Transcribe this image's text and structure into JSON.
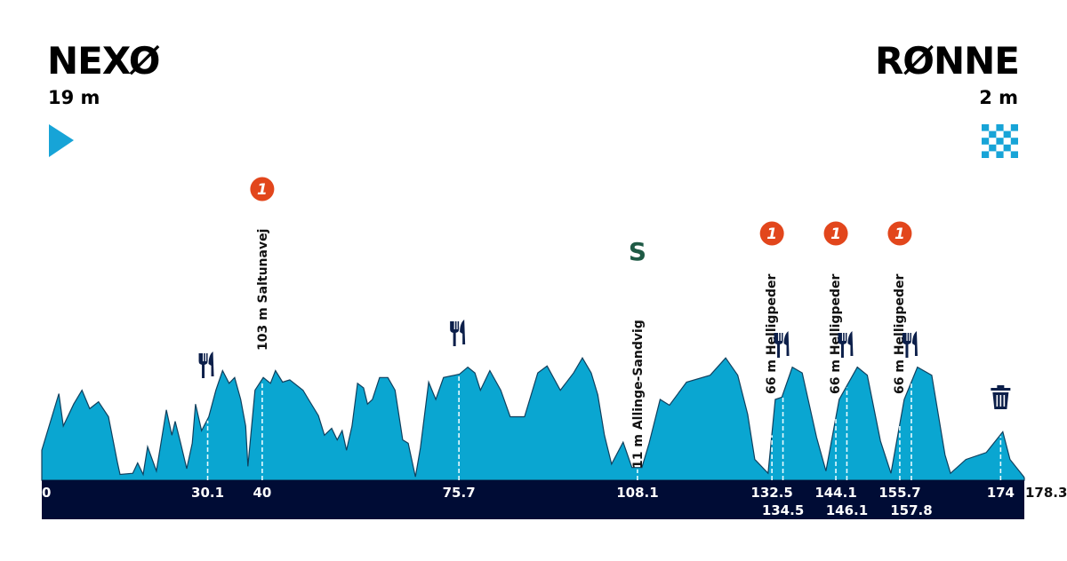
{
  "start": {
    "city": "NEXØ",
    "altitude": "19 m",
    "icon": "play-triangle-icon"
  },
  "finish": {
    "city": "RØNNE",
    "altitude": "2 m",
    "icon": "checkered-flag-icon"
  },
  "colors": {
    "profile_fill": "#0aa6d1",
    "profile_stroke": "#10405e",
    "axis_bar": "#000c35",
    "kom": "#e2461c",
    "sprint": "#1f5a45",
    "icon_dark": "#0c1f4a",
    "start_icon": "#17a4d7"
  },
  "chart_data": {
    "type": "area",
    "xlabel": "",
    "ylabel": "",
    "xlim": [
      0,
      178.3
    ],
    "x_unit": "km",
    "y_unit": "m",
    "profile": [
      [
        0,
        26
      ],
      [
        3.1,
        75
      ],
      [
        3.9,
        47
      ],
      [
        5.8,
        66
      ],
      [
        7.3,
        78
      ],
      [
        8.7,
        62
      ],
      [
        10.3,
        68
      ],
      [
        12.1,
        55
      ],
      [
        13.7,
        16
      ],
      [
        14.2,
        5
      ],
      [
        16.5,
        6
      ],
      [
        17.4,
        15
      ],
      [
        18.4,
        5
      ],
      [
        19.2,
        29
      ],
      [
        20.8,
        8
      ],
      [
        22.6,
        61
      ],
      [
        23.6,
        39
      ],
      [
        24.2,
        51
      ],
      [
        25.2,
        32
      ],
      [
        26.3,
        10
      ],
      [
        27.3,
        32
      ],
      [
        27.9,
        66
      ],
      [
        29.0,
        43
      ],
      [
        30.3,
        55
      ],
      [
        31.6,
        78
      ],
      [
        32.8,
        95
      ],
      [
        34.0,
        84
      ],
      [
        35.0,
        89
      ],
      [
        36.1,
        70
      ],
      [
        37.0,
        47
      ],
      [
        37.4,
        12
      ],
      [
        38.7,
        78
      ],
      [
        40.2,
        89
      ],
      [
        41.5,
        84
      ],
      [
        42.4,
        95
      ],
      [
        43.7,
        85
      ],
      [
        45.0,
        87
      ],
      [
        47.4,
        78
      ],
      [
        48.4,
        70
      ],
      [
        50.2,
        56
      ],
      [
        51.3,
        39
      ],
      [
        52.6,
        45
      ],
      [
        53.6,
        35
      ],
      [
        54.5,
        43
      ],
      [
        55.3,
        26
      ],
      [
        56.3,
        47
      ],
      [
        57.3,
        84
      ],
      [
        58.4,
        80
      ],
      [
        59.1,
        66
      ],
      [
        60.0,
        70
      ],
      [
        61.3,
        89
      ],
      [
        62.8,
        89
      ],
      [
        64.1,
        78
      ],
      [
        65.5,
        35
      ],
      [
        66.5,
        32
      ],
      [
        67.8,
        3
      ],
      [
        68.7,
        28
      ],
      [
        70.2,
        85
      ],
      [
        71.5,
        70
      ],
      [
        72.9,
        89
      ],
      [
        74.9,
        91
      ],
      [
        75.8,
        92
      ],
      [
        77.3,
        98
      ],
      [
        78.6,
        93
      ],
      [
        79.6,
        78
      ],
      [
        81.3,
        95
      ],
      [
        83.3,
        78
      ],
      [
        85.0,
        55
      ],
      [
        87.6,
        55
      ],
      [
        90.0,
        93
      ],
      [
        91.7,
        99
      ],
      [
        94.1,
        78
      ],
      [
        96.5,
        93
      ],
      [
        98.1,
        106
      ],
      [
        99.7,
        93
      ],
      [
        100.9,
        74
      ],
      [
        102.1,
        39
      ],
      [
        103.4,
        14
      ],
      [
        105.5,
        33
      ],
      [
        107.1,
        11
      ],
      [
        108.9,
        11
      ],
      [
        110.2,
        32
      ],
      [
        112.2,
        70
      ],
      [
        113.9,
        65
      ],
      [
        117.0,
        85
      ],
      [
        121.3,
        91
      ],
      [
        124.1,
        106
      ],
      [
        126.3,
        91
      ],
      [
        128.1,
        57
      ],
      [
        129.4,
        18
      ],
      [
        131.8,
        6
      ],
      [
        133.1,
        70
      ],
      [
        134.3,
        72
      ],
      [
        136.2,
        98
      ],
      [
        138.0,
        93
      ],
      [
        140.6,
        37
      ],
      [
        142.3,
        8
      ],
      [
        144.7,
        70
      ],
      [
        148.0,
        98
      ],
      [
        149.8,
        91
      ],
      [
        152.2,
        34
      ],
      [
        154.1,
        6
      ],
      [
        156.5,
        70
      ],
      [
        158.9,
        98
      ],
      [
        161.5,
        91
      ],
      [
        163.9,
        22
      ],
      [
        164.9,
        6
      ],
      [
        167.7,
        18
      ],
      [
        171.4,
        24
      ],
      [
        174.4,
        42
      ],
      [
        175.7,
        18
      ],
      [
        178.2,
        3
      ],
      [
        178.3,
        2
      ]
    ],
    "tick_labels": [
      {
        "km": 0,
        "label": "0",
        "row": 1
      },
      {
        "km": 30.1,
        "label": "30.1",
        "row": 1
      },
      {
        "km": 40,
        "label": "40",
        "row": 1
      },
      {
        "km": 75.7,
        "label": "75.7",
        "row": 1
      },
      {
        "km": 108.1,
        "label": "108.1",
        "row": 1
      },
      {
        "km": 132.5,
        "label": "132.5",
        "row": 1
      },
      {
        "km": 134.5,
        "label": "134.5",
        "row": 2
      },
      {
        "km": 144.1,
        "label": "144.1",
        "row": 1
      },
      {
        "km": 146.1,
        "label": "146.1",
        "row": 2
      },
      {
        "km": 155.7,
        "label": "155.7",
        "row": 1
      },
      {
        "km": 157.8,
        "label": "157.8",
        "row": 2
      },
      {
        "km": 174,
        "label": "174",
        "row": 1
      }
    ],
    "end_label": "178.3",
    "climbs": [
      {
        "km": 40,
        "label": "103 m Saltunavej",
        "category": "1"
      },
      {
        "km": 132.5,
        "label": "66 m Helligpeder",
        "category": "1"
      },
      {
        "km": 144.1,
        "label": "66 m Helligpeder",
        "category": "1"
      },
      {
        "km": 155.7,
        "label": "66 m Helligpeder",
        "category": "1"
      }
    ],
    "sprints": [
      {
        "km": 108.1,
        "label": "11 m Allinge-Sandvig",
        "symbol": "S"
      }
    ],
    "feed_zones": [
      30.1,
      75.7,
      134.5,
      146.1,
      157.8
    ],
    "waste_zones": [
      174
    ]
  }
}
